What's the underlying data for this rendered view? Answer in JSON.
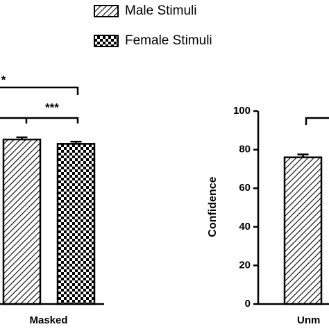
{
  "chart_data": [
    {
      "type": "bar",
      "categories": [
        "Masked"
      ],
      "ylim": [
        0,
        100
      ],
      "series": [
        {
          "name": "Male Stimuli",
          "color": "#000000",
          "pattern": "hatch",
          "values": [
            75
          ],
          "errors": [
            1
          ]
        },
        {
          "name": "Female Stimuli",
          "color": "#000000",
          "pattern": "checker",
          "values": [
            73
          ],
          "errors": [
            1
          ]
        }
      ],
      "annotations": [
        "*",
        "***"
      ]
    },
    {
      "type": "bar",
      "categories": [
        "Unm"
      ],
      "y_label": "Confidence",
      "ylim": [
        0,
        100
      ],
      "yticks": [
        0,
        20,
        40,
        60,
        80,
        100
      ],
      "series": [
        {
          "name": "Male Stimuli",
          "color": "#000000",
          "pattern": "hatch",
          "values": [
            76
          ],
          "errors": [
            1.5
          ]
        }
      ]
    }
  ]
}
